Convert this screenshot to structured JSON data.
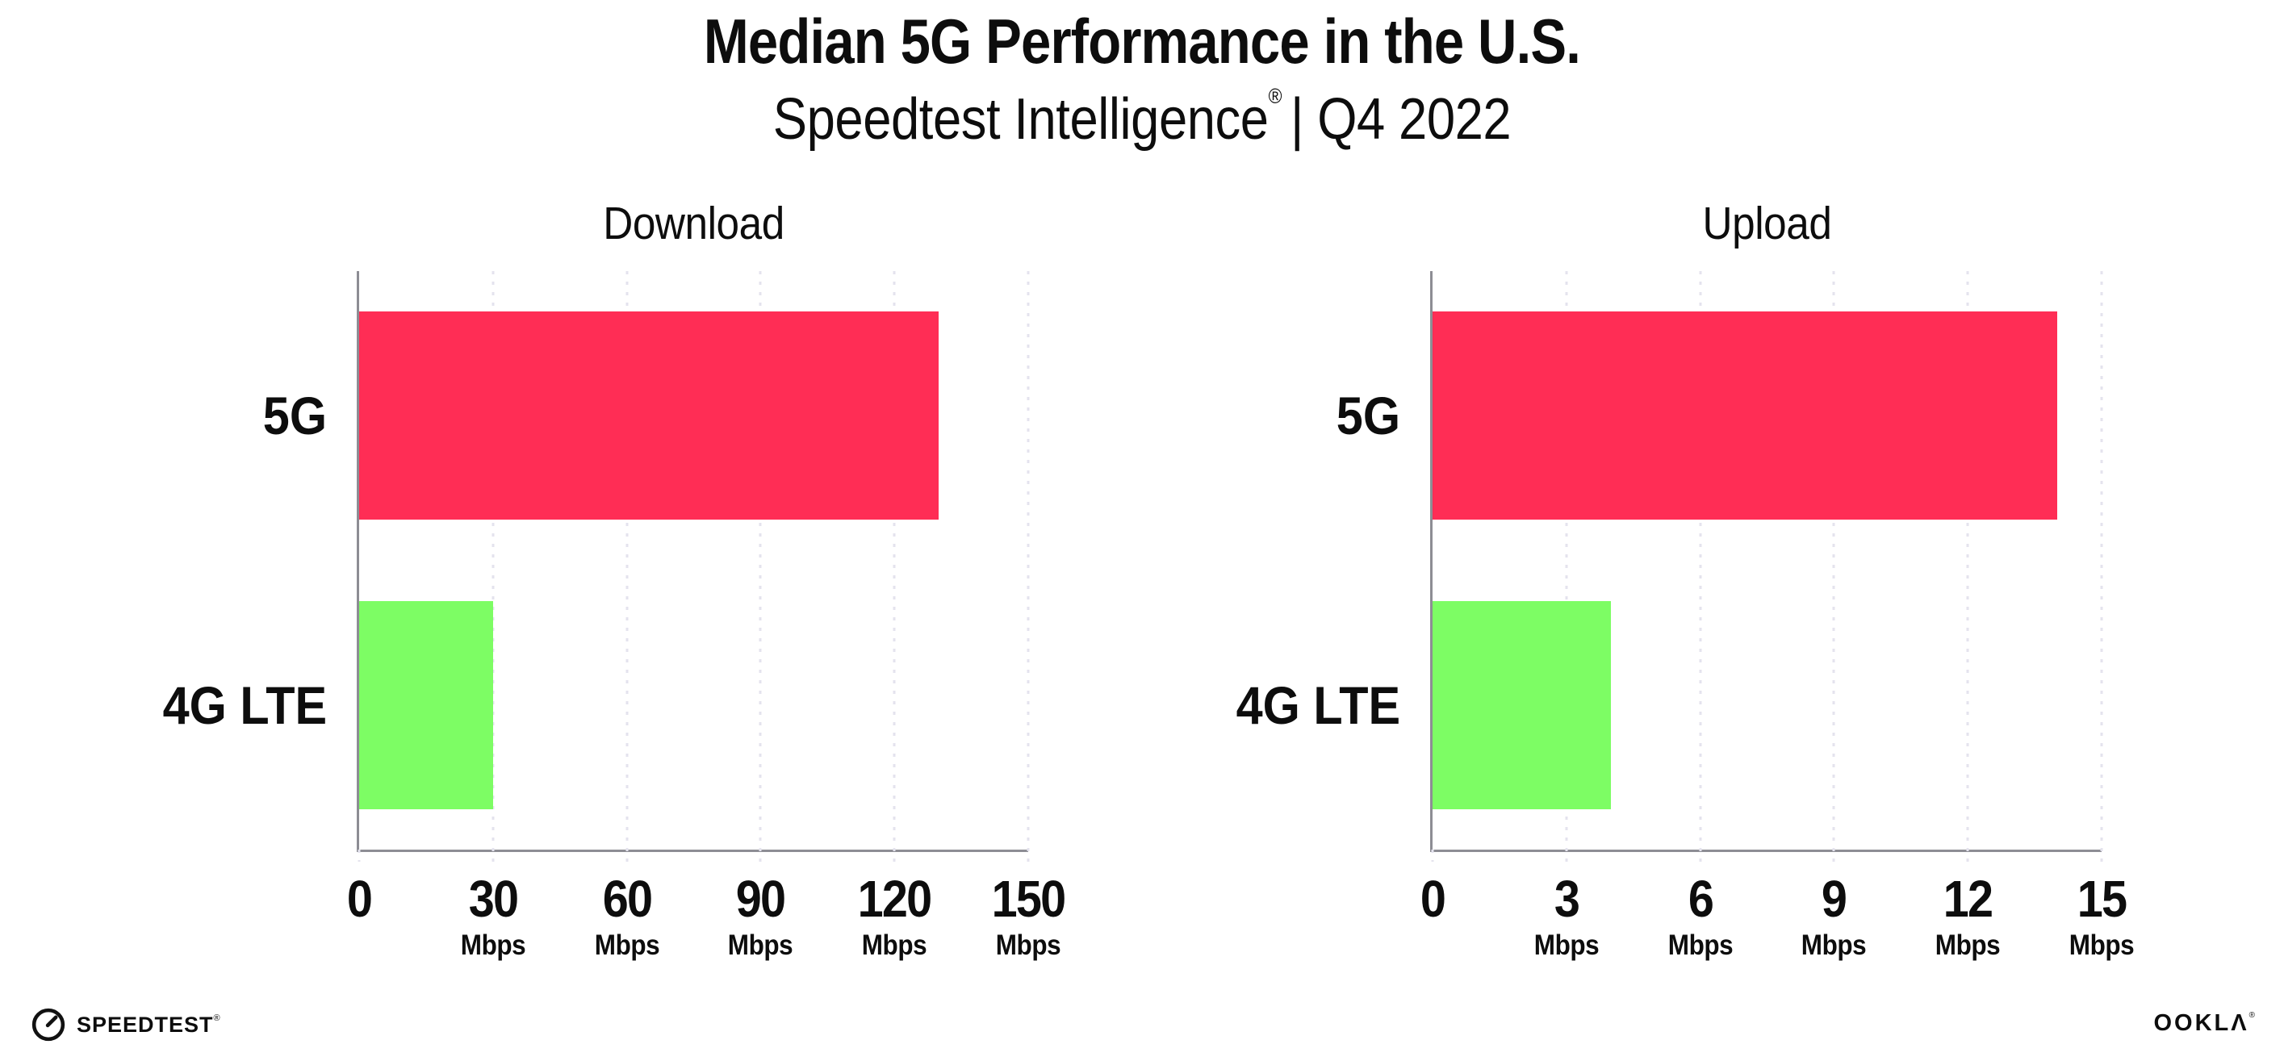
{
  "header": {
    "title": "Median 5G Performance in the U.S.",
    "subtitle_brand": "Speedtest Intelligence",
    "subtitle_reg": "®",
    "subtitle_rest": "| Q4 2022"
  },
  "chart_data": [
    {
      "type": "bar",
      "orientation": "horizontal",
      "title": "Download",
      "categories": [
        "5G",
        "4G LTE"
      ],
      "values": [
        130,
        30
      ],
      "unit": "Mbps",
      "bar_colors": [
        "#ff2d55",
        "#7dfd64"
      ],
      "xticks": [
        0,
        30,
        60,
        90,
        120,
        150
      ],
      "xlim": [
        0,
        150
      ],
      "grid": "dotted-vertical",
      "legend": "none"
    },
    {
      "type": "bar",
      "orientation": "horizontal",
      "title": "Upload",
      "categories": [
        "5G",
        "4G LTE"
      ],
      "values": [
        14,
        4
      ],
      "unit": "Mbps",
      "bar_colors": [
        "#ff2d55",
        "#7dfd64"
      ],
      "xticks": [
        0,
        3,
        6,
        9,
        12,
        15
      ],
      "xlim": [
        0,
        15
      ],
      "grid": "dotted-vertical",
      "legend": "none"
    }
  ],
  "footer": {
    "speedtest_text": "SPEEDTEST",
    "speedtest_reg": "®",
    "speedtest_icon": "gauge-icon",
    "ookla_text": "OOKLΛ",
    "ookla_reg": "®"
  },
  "colors": {
    "bar_5g": "#ff2d55",
    "bar_4g_lte": "#7dfd64",
    "axis": "#8d8d94",
    "gridline": "#e4e3ee",
    "text": "#0d0d0d",
    "background": "#ffffff"
  }
}
